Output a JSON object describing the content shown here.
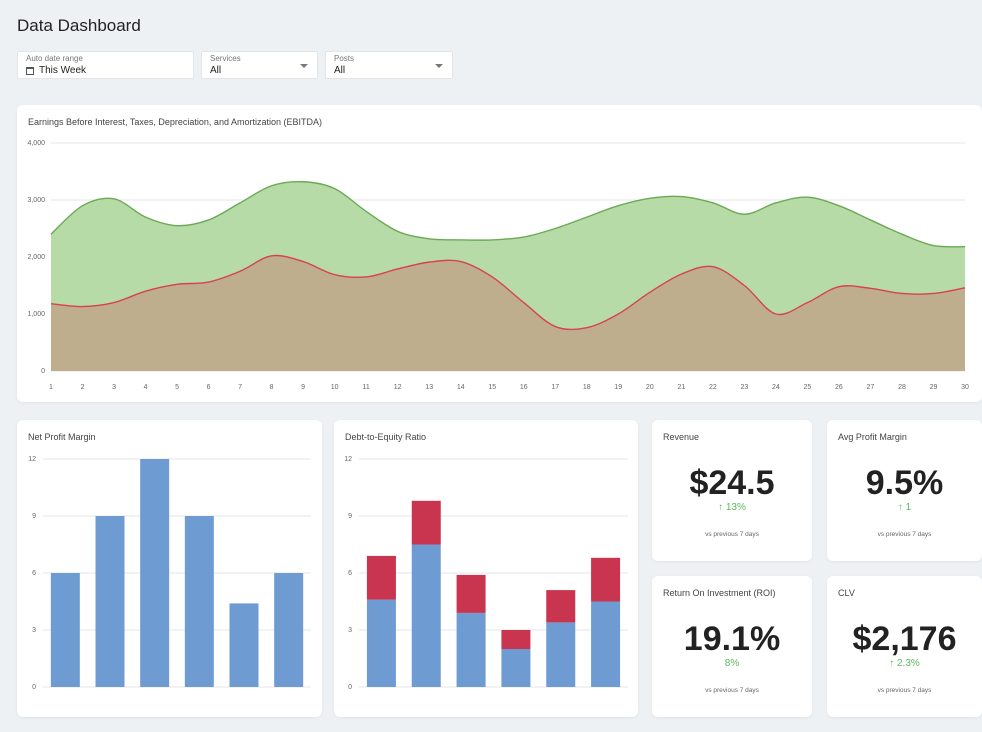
{
  "page": {
    "title": "Data Dashboard"
  },
  "filters": {
    "date": {
      "label": "Auto date range",
      "value": "This Week",
      "icon": "calendar-icon"
    },
    "services": {
      "label": "Services",
      "value": "All"
    },
    "posts": {
      "label": "Posts",
      "value": "All"
    }
  },
  "colors": {
    "green_line": "#6aaa55",
    "green_fill": "#b6dba6",
    "red_line": "#d9414f",
    "red_fill": "#bfae8e",
    "bar_blue": "#6f9bd3",
    "bar_red": "#c9344f",
    "positive": "#5cb85c"
  },
  "ebitda": {
    "title": "Earnings Before Interest, Taxes, Depreciation, and Amortization (EBITDA)"
  },
  "npm": {
    "title": "Net Profit Margin"
  },
  "der": {
    "title": "Debt-to-Equity Ratio"
  },
  "kpis": {
    "revenue": {
      "title": "Revenue",
      "value": "$24.5",
      "delta": "↑ 13%",
      "foot": "vs previous 7 days"
    },
    "margin": {
      "title": "Avg Profit Margin",
      "value": "9.5%",
      "delta": "↑ 1",
      "foot": "vs previous 7 days"
    },
    "roi": {
      "title": "Return On Investment (ROI)",
      "value": "19.1%",
      "delta": "8%",
      "foot": "vs previous 7 days"
    },
    "clv": {
      "title": "CLV",
      "value": "$2,176",
      "delta": "↑ 2.3%",
      "foot": "vs previous 7 days"
    }
  },
  "chart_data": [
    {
      "type": "area",
      "title": "Earnings Before Interest, Taxes, Depreciation, and Amortization (EBITDA)",
      "x": [
        1,
        2,
        3,
        4,
        5,
        6,
        7,
        8,
        9,
        10,
        11,
        12,
        13,
        14,
        15,
        16,
        17,
        18,
        19,
        20,
        21,
        22,
        23,
        24,
        25,
        26,
        27,
        28,
        29,
        30
      ],
      "ylim": [
        0,
        4000
      ],
      "yticks": [
        "0",
        "1,000",
        "2,000",
        "3,000",
        "4,000"
      ],
      "grid": true,
      "series": [
        {
          "values": [
            2400,
            2900,
            3020,
            2700,
            2550,
            2650,
            2950,
            3250,
            3320,
            3200,
            2800,
            2450,
            2320,
            2300,
            2300,
            2350,
            2500,
            2700,
            2900,
            3030,
            3060,
            2950,
            2750,
            2950,
            3050,
            2900,
            2650,
            2400,
            2200,
            2180
          ]
        },
        {
          "values": [
            1180,
            1130,
            1200,
            1400,
            1520,
            1560,
            1750,
            2020,
            1920,
            1690,
            1650,
            1790,
            1910,
            1920,
            1650,
            1200,
            780,
            760,
            1000,
            1380,
            1700,
            1830,
            1500,
            1000,
            1200,
            1480,
            1450,
            1360,
            1360,
            1460
          ]
        }
      ]
    },
    {
      "type": "bar",
      "title": "Net Profit Margin",
      "categories": [
        "",
        "",
        "",
        "",
        "",
        ""
      ],
      "values": [
        6,
        9,
        12,
        9,
        4.4,
        6
      ],
      "ylim": [
        0,
        12
      ],
      "yticks": [
        "0",
        "3",
        "6",
        "9",
        "12"
      ],
      "grid": true
    },
    {
      "type": "bar",
      "title": "Debt-to-Equity Ratio",
      "stacked": true,
      "categories": [
        "",
        "",
        "",
        "",
        "",
        ""
      ],
      "ylim": [
        0,
        12
      ],
      "yticks": [
        "0",
        "3",
        "6",
        "9",
        "12"
      ],
      "grid": true,
      "series": [
        {
          "values": [
            4.6,
            7.5,
            3.9,
            2.0,
            3.4,
            4.5
          ]
        },
        {
          "values": [
            2.3,
            2.3,
            2.0,
            1.0,
            1.7,
            2.3
          ]
        }
      ]
    }
  ]
}
